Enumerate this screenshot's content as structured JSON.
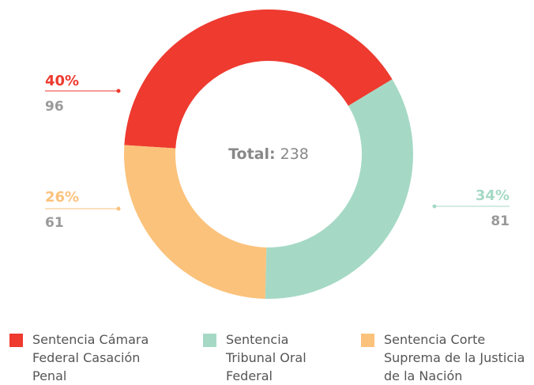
{
  "chart_data": {
    "type": "donut",
    "categories": [
      "Sentencia Cámara Federal Casación Penal",
      "Sentencia Tribunal Oral Federal",
      "Sentencia Corte Suprema de la Justicia de la Nación"
    ],
    "values": [
      96,
      81,
      61
    ],
    "percentages": [
      {
        "value": 40,
        "label": "40%"
      },
      {
        "value": 34,
        "label": "34%"
      },
      {
        "value": 26,
        "label": "26%"
      }
    ],
    "colors": [
      "#ee3a2f",
      "#a5d9c5",
      "#fbc27c"
    ],
    "total_label": "Total:",
    "total": 238
  }
}
